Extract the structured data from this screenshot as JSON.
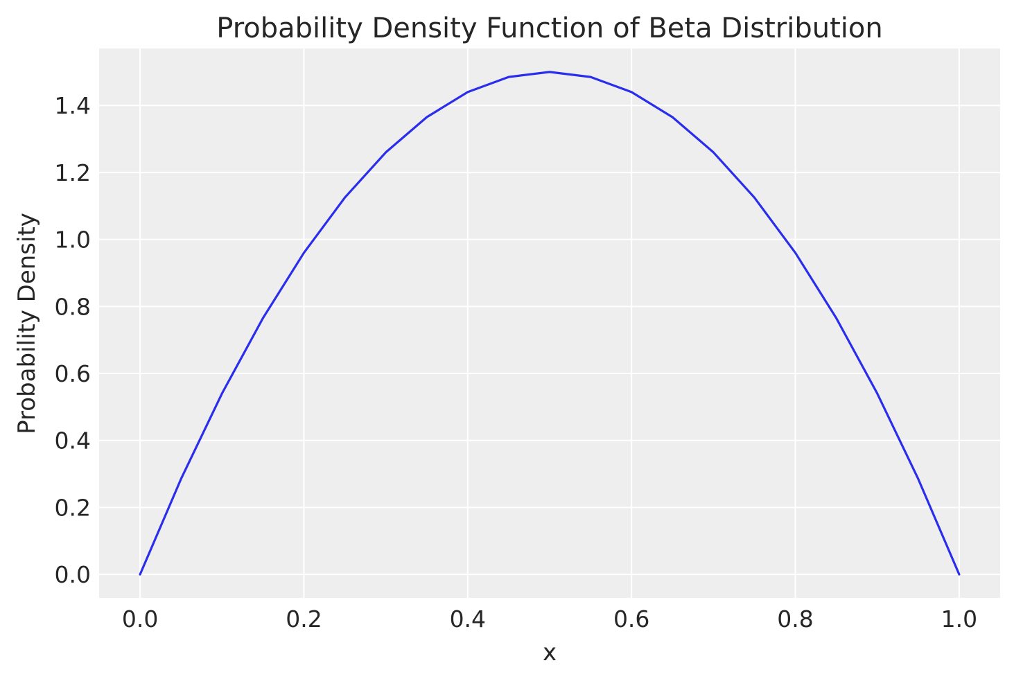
{
  "chart_data": {
    "type": "line",
    "title": "Probability Density Function of Beta Distribution",
    "xlabel": "x",
    "ylabel": "Probability Density",
    "xlim": [
      -0.05,
      1.05
    ],
    "ylim": [
      -0.07,
      1.57
    ],
    "xticks": [
      0.0,
      0.2,
      0.4,
      0.6,
      0.8,
      1.0
    ],
    "xtick_labels": [
      "0.0",
      "0.2",
      "0.4",
      "0.6",
      "0.8",
      "1.0"
    ],
    "yticks": [
      0.0,
      0.2,
      0.4,
      0.6,
      0.8,
      1.0,
      1.2,
      1.4
    ],
    "ytick_labels": [
      "0.0",
      "0.2",
      "0.4",
      "0.6",
      "0.8",
      "1.0",
      "1.2",
      "1.4"
    ],
    "grid": true,
    "legend": "none",
    "series": [
      {
        "color": "#2a2eec",
        "x": [
          0.0,
          0.05,
          0.1,
          0.15,
          0.2,
          0.25,
          0.3,
          0.35,
          0.4,
          0.45,
          0.5,
          0.55,
          0.6,
          0.65,
          0.7,
          0.75,
          0.8,
          0.85,
          0.9,
          0.95,
          1.0
        ],
        "y": [
          0.0,
          0.285,
          0.54,
          0.765,
          0.96,
          1.125,
          1.26,
          1.365,
          1.44,
          1.485,
          1.5,
          1.485,
          1.44,
          1.365,
          1.26,
          1.125,
          0.96,
          0.765,
          0.54,
          0.285,
          0.0
        ]
      }
    ]
  }
}
